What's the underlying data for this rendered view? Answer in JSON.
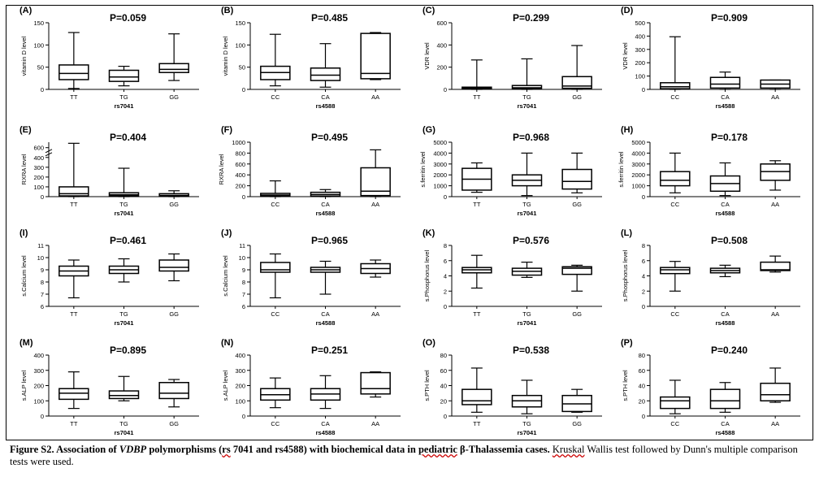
{
  "chart_data": [
    {
      "type": "box",
      "panel_label": "(A)",
      "title": "P=0.059",
      "ylabel": "vitamin D level",
      "xlabel": "rs7041",
      "yticks": [
        0,
        50,
        100,
        150
      ],
      "ylim": [
        0,
        150
      ],
      "categories": [
        "TT",
        "TG",
        "GG"
      ],
      "boxes": [
        {
          "min": 2,
          "q1": 22,
          "median": 36,
          "q3": 55,
          "max": 128
        },
        {
          "min": 8,
          "q1": 18,
          "median": 28,
          "q3": 43,
          "max": 52
        },
        {
          "min": 20,
          "q1": 38,
          "median": 45,
          "q3": 58,
          "max": 125
        }
      ]
    },
    {
      "type": "box",
      "panel_label": "(B)",
      "title": "P=0.485",
      "ylabel": "vitamin D level",
      "xlabel": "rs4588",
      "yticks": [
        0,
        50,
        100,
        150
      ],
      "ylim": [
        0,
        150
      ],
      "categories": [
        "CC",
        "CA",
        "AA"
      ],
      "boxes": [
        {
          "min": 8,
          "q1": 22,
          "median": 38,
          "q3": 52,
          "max": 124
        },
        {
          "min": 5,
          "q1": 20,
          "median": 32,
          "q3": 48,
          "max": 103
        },
        {
          "min": 22,
          "q1": 24,
          "median": 36,
          "q3": 126,
          "max": 128
        }
      ]
    },
    {
      "type": "box",
      "panel_label": "(C)",
      "title": "P=0.299",
      "ylabel": "VDR level",
      "xlabel": "rs7041",
      "yticks": [
        0,
        200,
        400,
        600
      ],
      "ylim": [
        0,
        600
      ],
      "categories": [
        "TT",
        "TG",
        "GG"
      ],
      "boxes": [
        {
          "min": 0,
          "q1": 3,
          "median": 10,
          "q3": 20,
          "max": 265
        },
        {
          "min": 0,
          "q1": 5,
          "median": 15,
          "q3": 35,
          "max": 275
        },
        {
          "min": 0,
          "q1": 10,
          "median": 30,
          "q3": 115,
          "max": 395
        }
      ]
    },
    {
      "type": "box",
      "panel_label": "(D)",
      "title": "P=0.909",
      "ylabel": "VDR level",
      "xlabel": "rs4588",
      "yticks": [
        0,
        100,
        200,
        300,
        400,
        500
      ],
      "ylim": [
        0,
        500
      ],
      "categories": [
        "CC",
        "CA",
        "AA"
      ],
      "boxes": [
        {
          "min": 0,
          "q1": 5,
          "median": 20,
          "q3": 50,
          "max": 395
        },
        {
          "min": 0,
          "q1": 10,
          "median": 40,
          "q3": 90,
          "max": 130
        },
        {
          "min": 0,
          "q1": 10,
          "median": 40,
          "q3": 70,
          "max": 70
        }
      ]
    },
    {
      "type": "box",
      "panel_label": "(E)",
      "title": "P=0.404",
      "ylabel": "RXRA level",
      "xlabel": "rs7041",
      "yticks": [
        0,
        100,
        200,
        300,
        400,
        600
      ],
      "ylim": [
        0,
        650
      ],
      "axis_break": [
        400,
        550
      ],
      "categories": [
        "TT",
        "TG",
        "GG"
      ],
      "boxes": [
        {
          "min": 0,
          "q1": 8,
          "median": 30,
          "q3": 100,
          "max": 640
        },
        {
          "min": 0,
          "q1": 10,
          "median": 20,
          "q3": 40,
          "max": 290
        },
        {
          "min": 0,
          "q1": 5,
          "median": 12,
          "q3": 30,
          "max": 60
        }
      ]
    },
    {
      "type": "box",
      "panel_label": "(F)",
      "title": "P=0.495",
      "ylabel": "RXRA level",
      "xlabel": "rs4588",
      "yticks": [
        0,
        200,
        400,
        600,
        800,
        1000
      ],
      "ylim": [
        0,
        1000
      ],
      "categories": [
        "CC",
        "CA",
        "AA"
      ],
      "boxes": [
        {
          "min": 0,
          "q1": 10,
          "median": 30,
          "q3": 60,
          "max": 290
        },
        {
          "min": 0,
          "q1": 10,
          "median": 40,
          "q3": 80,
          "max": 130
        },
        {
          "min": 0,
          "q1": 20,
          "median": 100,
          "q3": 530,
          "max": 860
        }
      ]
    },
    {
      "type": "box",
      "panel_label": "(G)",
      "title": "P=0.968",
      "ylabel": "s.ferritin level",
      "xlabel": "rs7041",
      "yticks": [
        0,
        1000,
        2000,
        3000,
        4000,
        5000
      ],
      "ylim": [
        0,
        5000
      ],
      "categories": [
        "TT",
        "TG",
        "GG"
      ],
      "boxes": [
        {
          "min": 400,
          "q1": 600,
          "median": 1600,
          "q3": 2600,
          "max": 3100
        },
        {
          "min": 100,
          "q1": 1000,
          "median": 1500,
          "q3": 2000,
          "max": 4000
        },
        {
          "min": 350,
          "q1": 700,
          "median": 1400,
          "q3": 2500,
          "max": 4000
        }
      ]
    },
    {
      "type": "box",
      "panel_label": "(H)",
      "title": "P=0.178",
      "ylabel": "s.ferritin level",
      "xlabel": "rs4588",
      "yticks": [
        0,
        1000,
        2000,
        3000,
        4000,
        5000
      ],
      "ylim": [
        0,
        5000
      ],
      "categories": [
        "CC",
        "CA",
        "AA"
      ],
      "boxes": [
        {
          "min": 350,
          "q1": 1000,
          "median": 1500,
          "q3": 2300,
          "max": 4000
        },
        {
          "min": 100,
          "q1": 500,
          "median": 1200,
          "q3": 1900,
          "max": 3100
        },
        {
          "min": 600,
          "q1": 1500,
          "median": 2300,
          "q3": 3000,
          "max": 3300
        }
      ]
    },
    {
      "type": "box",
      "panel_label": "(I)",
      "title": "P=0.461",
      "ylabel": "s.Calcium level",
      "xlabel": "rs7041",
      "yticks": [
        6,
        7,
        8,
        9,
        10,
        11
      ],
      "ylim": [
        6,
        11
      ],
      "categories": [
        "TT",
        "TG",
        "GG"
      ],
      "boxes": [
        {
          "min": 6.7,
          "q1": 8.5,
          "median": 8.9,
          "q3": 9.3,
          "max": 9.8
        },
        {
          "min": 8.0,
          "q1": 8.7,
          "median": 9.0,
          "q3": 9.3,
          "max": 9.9
        },
        {
          "min": 8.1,
          "q1": 8.9,
          "median": 9.2,
          "q3": 9.8,
          "max": 10.3
        }
      ]
    },
    {
      "type": "box",
      "panel_label": "(J)",
      "title": "P=0.965",
      "ylabel": "s.Calcium level",
      "xlabel": "rs4588",
      "yticks": [
        6,
        7,
        8,
        9,
        10,
        11
      ],
      "ylim": [
        6,
        11
      ],
      "categories": [
        "CC",
        "CA",
        "AA"
      ],
      "boxes": [
        {
          "min": 6.7,
          "q1": 8.8,
          "median": 9.0,
          "q3": 9.6,
          "max": 10.3
        },
        {
          "min": 7.0,
          "q1": 8.8,
          "median": 9.0,
          "q3": 9.2,
          "max": 9.7
        },
        {
          "min": 8.4,
          "q1": 8.7,
          "median": 9.1,
          "q3": 9.5,
          "max": 9.8
        }
      ]
    },
    {
      "type": "box",
      "panel_label": "(K)",
      "title": "P=0.576",
      "ylabel": "s.Phosphorus level",
      "xlabel": "rs7041",
      "yticks": [
        0,
        2,
        4,
        6,
        8
      ],
      "ylim": [
        0,
        8
      ],
      "categories": [
        "TT",
        "TG",
        "GG"
      ],
      "boxes": [
        {
          "min": 2.4,
          "q1": 4.4,
          "median": 4.8,
          "q3": 5.1,
          "max": 6.7
        },
        {
          "min": 3.8,
          "q1": 4.1,
          "median": 4.6,
          "q3": 5.0,
          "max": 5.8
        },
        {
          "min": 2.0,
          "q1": 4.2,
          "median": 5.0,
          "q3": 5.2,
          "max": 5.4
        }
      ]
    },
    {
      "type": "box",
      "panel_label": "(L)",
      "title": "P=0.508",
      "ylabel": "s.Phosphorus level",
      "xlabel": "rs4588",
      "yticks": [
        0,
        2,
        4,
        6,
        8
      ],
      "ylim": [
        0,
        8
      ],
      "categories": [
        "CC",
        "CA",
        "AA"
      ],
      "boxes": [
        {
          "min": 2.0,
          "q1": 4.3,
          "median": 4.8,
          "q3": 5.1,
          "max": 5.9
        },
        {
          "min": 3.9,
          "q1": 4.4,
          "median": 4.7,
          "q3": 5.0,
          "max": 5.4
        },
        {
          "min": 4.5,
          "q1": 4.7,
          "median": 4.8,
          "q3": 5.8,
          "max": 6.6
        }
      ]
    },
    {
      "type": "box",
      "panel_label": "(M)",
      "title": "P=0.895",
      "ylabel": "s.ALP level",
      "xlabel": "rs7041",
      "yticks": [
        0,
        100,
        200,
        300,
        400
      ],
      "ylim": [
        0,
        400
      ],
      "categories": [
        "TT",
        "TG",
        "GG"
      ],
      "boxes": [
        {
          "min": 50,
          "q1": 110,
          "median": 150,
          "q3": 180,
          "max": 290
        },
        {
          "min": 100,
          "q1": 115,
          "median": 135,
          "q3": 165,
          "max": 260
        },
        {
          "min": 60,
          "q1": 115,
          "median": 150,
          "q3": 220,
          "max": 240
        }
      ]
    },
    {
      "type": "box",
      "panel_label": "(N)",
      "title": "P=0.251",
      "ylabel": "s.ALP level",
      "xlabel": "rs4588",
      "yticks": [
        0,
        100,
        200,
        300,
        400
      ],
      "ylim": [
        0,
        400
      ],
      "categories": [
        "CC",
        "CA",
        "AA"
      ],
      "boxes": [
        {
          "min": 55,
          "q1": 105,
          "median": 140,
          "q3": 180,
          "max": 250
        },
        {
          "min": 50,
          "q1": 105,
          "median": 145,
          "q3": 180,
          "max": 265
        },
        {
          "min": 125,
          "q1": 145,
          "median": 180,
          "q3": 285,
          "max": 290
        }
      ]
    },
    {
      "type": "box",
      "panel_label": "(O)",
      "title": "P=0.538",
      "ylabel": "s.PTH level",
      "xlabel": "rs7041",
      "yticks": [
        0,
        20,
        40,
        60,
        80
      ],
      "ylim": [
        0,
        80
      ],
      "categories": [
        "TT",
        "TG",
        "GG"
      ],
      "boxes": [
        {
          "min": 5,
          "q1": 15,
          "median": 20,
          "q3": 35,
          "max": 63
        },
        {
          "min": 3,
          "q1": 12,
          "median": 20,
          "q3": 27,
          "max": 47
        },
        {
          "min": 5,
          "q1": 6,
          "median": 16,
          "q3": 27,
          "max": 35
        }
      ]
    },
    {
      "type": "box",
      "panel_label": "(P)",
      "title": "P=0.240",
      "ylabel": "s.PTH level",
      "xlabel": "rs4588",
      "yticks": [
        0,
        20,
        40,
        60,
        80
      ],
      "ylim": [
        0,
        80
      ],
      "categories": [
        "CC",
        "CA",
        "AA"
      ],
      "boxes": [
        {
          "min": 3,
          "q1": 10,
          "median": 20,
          "q3": 25,
          "max": 47
        },
        {
          "min": 5,
          "q1": 10,
          "median": 20,
          "q3": 35,
          "max": 44
        },
        {
          "min": 18,
          "q1": 20,
          "median": 28,
          "q3": 43,
          "max": 63
        }
      ]
    }
  ],
  "caption": {
    "figure_label": "Figure S2. Association of ",
    "gene": "VDBP",
    "part2": " polymorphisms (",
    "rs_a": "rs",
    "part3": " 7041 and rs4588) with biochemical data in ",
    "pediatric": "pediatric",
    "part4": " β-Thalassemia cases.",
    "kruskal": "Kruskal",
    "rest": " Wallis test followed by Dunn's multiple comparison tests were used."
  }
}
